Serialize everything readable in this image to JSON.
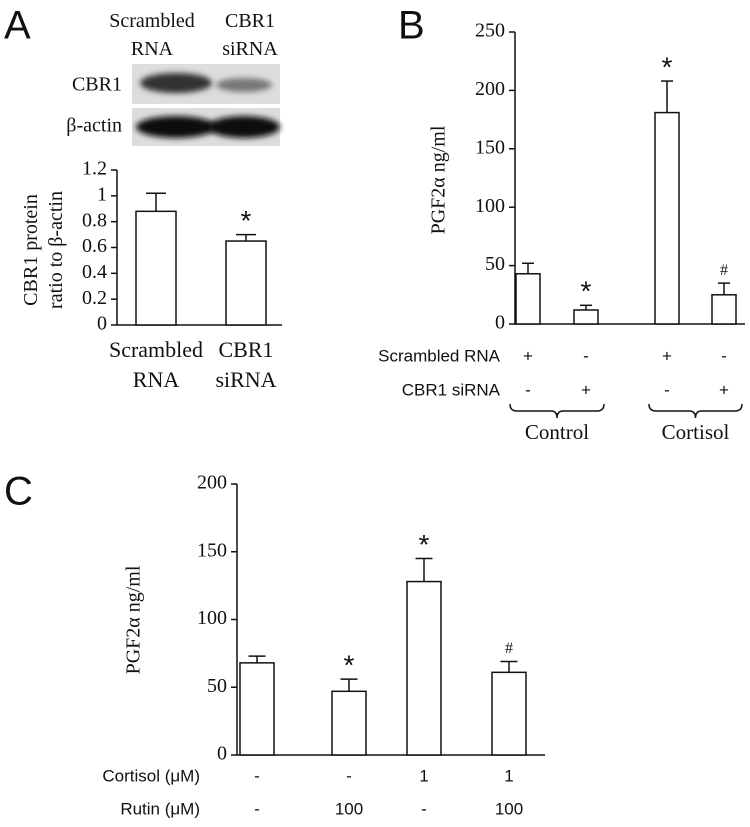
{
  "chart_data": [
    {
      "type": "bar",
      "panel": "A",
      "blot": {
        "column_labels": [
          "Scrambled RNA",
          "CBR1 siRNA"
        ],
        "row_labels": [
          "CBR1",
          "β-actin"
        ]
      },
      "y_label": [
        "CBR1 protein",
        "ratio to β-actin"
      ],
      "categories": [
        "Scrambled RNA",
        "CBR1 siRNA"
      ],
      "values": [
        0.88,
        0.65
      ],
      "errors": [
        0.14,
        0.05
      ],
      "markers": [
        null,
        "*"
      ],
      "color": "#ffffff",
      "ylim": [
        0,
        1.2
      ],
      "yticks": [
        0,
        0.2,
        0.4,
        0.6,
        0.8,
        1,
        1.2
      ]
    },
    {
      "type": "bar",
      "panel": "B",
      "y_label": [
        "PGF2α ng/ml"
      ],
      "values": [
        43,
        12,
        181,
        25
      ],
      "errors": [
        9,
        4,
        27,
        10
      ],
      "markers": [
        null,
        "*",
        "*",
        "#"
      ],
      "conditions": [
        {
          "name": "Scrambled RNA",
          "values": [
            "+",
            "-",
            "+",
            "-"
          ]
        },
        {
          "name": "CBR1 siRNA",
          "values": [
            "-",
            "+",
            "-",
            "+"
          ]
        }
      ],
      "groups": [
        "Control",
        "Cortisol"
      ],
      "color": "#ffffff",
      "ylim": [
        0,
        250
      ],
      "yticks": [
        0,
        50,
        100,
        150,
        200,
        250
      ]
    },
    {
      "type": "bar",
      "panel": "C",
      "y_label": [
        "PGF2α ng/ml"
      ],
      "values": [
        68,
        47,
        128,
        61
      ],
      "errors": [
        5,
        9,
        17,
        8
      ],
      "markers": [
        null,
        "*",
        "*",
        "#"
      ],
      "conditions": [
        {
          "name": "Cortisol (μM)",
          "values": [
            "-",
            "-",
            "1",
            "1"
          ]
        },
        {
          "name": "Rutin  (μM)",
          "values": [
            "-",
            "100",
            "-",
            "100"
          ]
        }
      ],
      "color": "#ffffff",
      "ylim": [
        0,
        200
      ],
      "yticks": [
        0,
        50,
        100,
        150,
        200
      ]
    }
  ]
}
